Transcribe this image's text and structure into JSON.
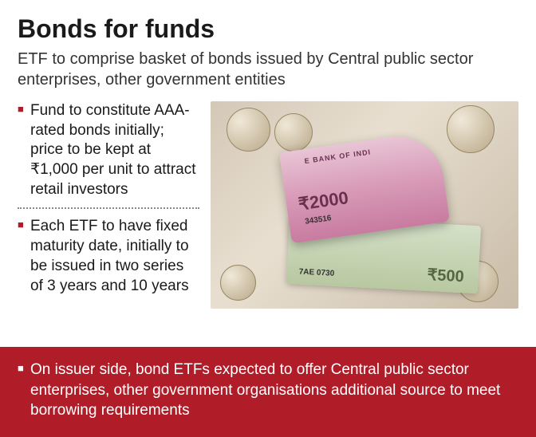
{
  "title": "Bonds for funds",
  "subtitle": "ETF to comprise basket of bonds issued by Central public sector enterprises, other government entities",
  "bullets": [
    "Fund to constitute AAA-rated bonds initially; price to be kept at ₹1,000 per unit to attract retail investors",
    "Each ETF to have fixed maturity date, initially to be issued in two series of 3 years and 10 years"
  ],
  "footer_text": "On issuer side, bond ETFs expected to offer Central public sector enterprises, other government organisations additional source to meet borrowing requirements",
  "image": {
    "bank_label": "E BANK OF INDI",
    "note_2000": "₹2000",
    "serial_2000": "343516",
    "note_500": "₹500",
    "serial_500": "7AE  0730"
  },
  "colors": {
    "accent": "#b01d28",
    "text": "#1a1a1a",
    "footer_bg": "#b01d28",
    "footer_text": "#ffffff"
  }
}
